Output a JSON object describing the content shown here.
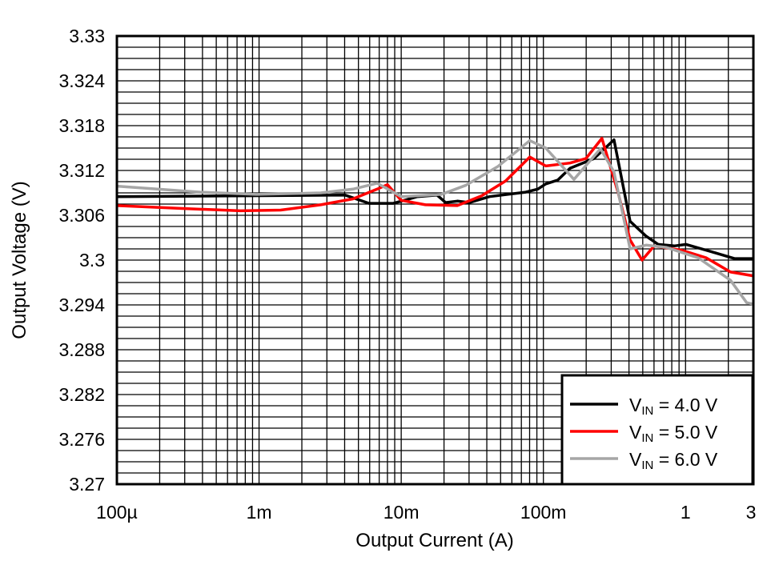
{
  "chart_data": {
    "type": "line",
    "title": "",
    "xlabel": "Output Current (A)",
    "ylabel": "Output Voltage (V)",
    "x_scale": "log",
    "xlim": [
      0.0001,
      3
    ],
    "ylim": [
      3.27,
      3.33
    ],
    "grid": true,
    "legend_position": "bottom-right",
    "x_ticks": [
      {
        "value": 0.0001,
        "label": "100µ"
      },
      {
        "value": 0.001,
        "label": "1m"
      },
      {
        "value": 0.01,
        "label": "10m"
      },
      {
        "value": 0.1,
        "label": "100m"
      },
      {
        "value": 1,
        "label": "1"
      },
      {
        "value": 3,
        "label": "3"
      }
    ],
    "y_ticks": [
      {
        "value": 3.27,
        "label": "3.27"
      },
      {
        "value": 3.276,
        "label": "3.276"
      },
      {
        "value": 3.282,
        "label": "3.282"
      },
      {
        "value": 3.288,
        "label": "3.288"
      },
      {
        "value": 3.294,
        "label": "3.294"
      },
      {
        "value": 3.3,
        "label": "3.3"
      },
      {
        "value": 3.306,
        "label": "3.306"
      },
      {
        "value": 3.312,
        "label": "3.312"
      },
      {
        "value": 3.318,
        "label": "3.318"
      },
      {
        "value": 3.324,
        "label": "3.324"
      },
      {
        "value": 3.33,
        "label": "3.33"
      }
    ],
    "series": [
      {
        "name": "V_IN = 4.0 V",
        "label_main": "V",
        "label_sub": "IN",
        "label_rest": " = 4.0 V",
        "color": "#000000",
        "x": [
          0.0001,
          0.00403,
          0.00594,
          0.00879,
          0.013,
          0.0179,
          0.0205,
          0.0248,
          0.0302,
          0.0418,
          0.0751,
          0.0913,
          0.104,
          0.126,
          0.154,
          0.227,
          0.314,
          0.407,
          0.528,
          0.643,
          0.833,
          1.01,
          1.6,
          2.21,
          2.98
        ],
        "y": [
          3.3085,
          3.3087,
          3.3076,
          3.3076,
          3.3085,
          3.3087,
          3.3077,
          3.3079,
          3.3077,
          3.3085,
          3.3091,
          3.3095,
          3.3102,
          3.3107,
          3.3123,
          3.3136,
          3.3161,
          3.3052,
          3.3032,
          3.3021,
          3.3019,
          3.3021,
          3.301,
          3.3002,
          3.3002
        ]
      },
      {
        "name": "V_IN = 5.0 V",
        "label_main": "V",
        "label_sub": "IN",
        "label_rest": " = 5.0 V",
        "color": "#ff0000",
        "x": [
          0.0001,
          0.0003,
          0.00074,
          0.00142,
          0.00272,
          0.00458,
          0.00677,
          0.008,
          0.01,
          0.0148,
          0.0248,
          0.0367,
          0.0542,
          0.0802,
          0.104,
          0.154,
          0.199,
          0.258,
          0.335,
          0.407,
          0.495,
          0.602,
          0.948,
          1.4,
          2.07,
          2.98
        ],
        "y": [
          3.3073,
          3.3069,
          3.3066,
          3.3067,
          3.3074,
          3.3082,
          3.3095,
          3.3101,
          3.308,
          3.3074,
          3.3073,
          3.3086,
          3.3106,
          3.3138,
          3.3126,
          3.313,
          3.3136,
          3.3163,
          3.3091,
          3.3027,
          3.3,
          3.3019,
          3.3013,
          3.3003,
          3.2984,
          3.2979
        ]
      },
      {
        "name": "V_IN = 6.0 V",
        "label_main": "V",
        "label_sub": "IN",
        "label_rest": " = 6.0 V",
        "color": "#a6a6a6",
        "x": [
          0.0001,
          0.000387,
          0.00096,
          0.00272,
          0.00458,
          0.00677,
          0.01,
          0.0192,
          0.0283,
          0.0476,
          0.0802,
          0.104,
          0.164,
          0.252,
          0.314,
          0.407,
          0.528,
          0.731,
          1.23,
          2.07,
          2.69,
          3.0
        ],
        "y": [
          3.3099,
          3.3091,
          3.3088,
          3.309,
          3.3095,
          3.3103,
          3.3085,
          3.3088,
          3.31,
          3.3125,
          3.316,
          3.315,
          3.3108,
          3.3149,
          3.3118,
          3.3015,
          3.302,
          3.3017,
          3.3003,
          3.2973,
          3.2943,
          3.2941
        ]
      }
    ]
  }
}
